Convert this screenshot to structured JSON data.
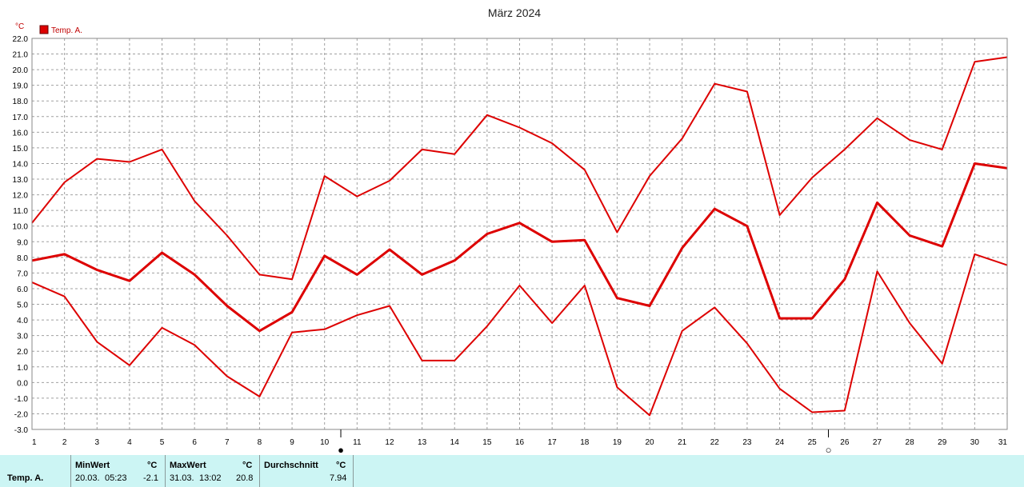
{
  "title": "März 2024",
  "legend": {
    "label": "Temp. A.",
    "color": "#dd0000"
  },
  "chart_data": {
    "type": "line",
    "title": "März 2024",
    "ylabel": "°C",
    "xlabel": "",
    "ylim": [
      -3.0,
      22.0
    ],
    "xlim": [
      1,
      31
    ],
    "y_ticks": [
      "-3.0",
      "-2.0",
      "-1.0",
      "0.0",
      "1.0",
      "2.0",
      "3.0",
      "4.0",
      "5.0",
      "6.0",
      "7.0",
      "8.0",
      "9.0",
      "10.0",
      "11.0",
      "12.0",
      "13.0",
      "14.0",
      "15.0",
      "16.0",
      "17.0",
      "18.0",
      "19.0",
      "20.0",
      "21.0",
      "22.0"
    ],
    "x": [
      1,
      2,
      3,
      4,
      5,
      6,
      7,
      8,
      9,
      10,
      11,
      12,
      13,
      14,
      15,
      16,
      17,
      18,
      19,
      20,
      21,
      22,
      23,
      24,
      25,
      26,
      27,
      28,
      29,
      30,
      31
    ],
    "grid": true,
    "legend_position": "top-left",
    "series": [
      {
        "name": "",
        "role": "max",
        "color": "#dd0000",
        "values": [
          10.2,
          12.8,
          14.3,
          14.1,
          14.9,
          11.6,
          9.4,
          6.9,
          6.6,
          13.2,
          11.9,
          12.9,
          14.9,
          14.6,
          17.1,
          16.3,
          15.3,
          13.6,
          9.6,
          13.2,
          15.6,
          19.1,
          18.6,
          10.7,
          13.1,
          14.9,
          16.9,
          15.5,
          14.9,
          20.5,
          20.8
        ]
      },
      {
        "name": "",
        "role": "mean",
        "color": "#dd0000",
        "values": [
          7.8,
          8.2,
          7.2,
          6.5,
          8.3,
          6.9,
          4.9,
          3.3,
          4.5,
          8.1,
          6.9,
          8.5,
          6.9,
          7.8,
          9.5,
          10.2,
          9.0,
          9.1,
          5.4,
          4.9,
          8.6,
          11.1,
          10.0,
          4.1,
          4.1,
          6.6,
          11.5,
          9.4,
          8.7,
          14.0,
          13.7
        ]
      },
      {
        "name": "",
        "role": "min",
        "color": "#dd0000",
        "values": [
          6.4,
          5.5,
          2.6,
          1.1,
          3.5,
          2.4,
          0.4,
          -0.9,
          3.2,
          3.4,
          4.3,
          4.9,
          1.4,
          1.4,
          3.6,
          6.2,
          3.8,
          6.2,
          -0.3,
          -2.1,
          3.3,
          4.8,
          2.5,
          -0.4,
          -1.9,
          -1.8,
          7.1,
          3.8,
          1.2,
          8.2,
          7.5
        ]
      }
    ],
    "markers": [
      {
        "day": 10.5,
        "symbol": "●"
      },
      {
        "day": 25.5,
        "symbol": "○"
      }
    ]
  },
  "stats": {
    "row_label": "Temp. A.",
    "min": {
      "header": "MinWert",
      "unit": "°C",
      "date": "20.03.",
      "time": "05:23",
      "value": "-2.1"
    },
    "max": {
      "header": "MaxWert",
      "unit": "°C",
      "date": "31.03.",
      "time": "13:02",
      "value": "20.8"
    },
    "avg": {
      "header": "Durchschnitt",
      "unit": "°C",
      "value": "7.94"
    }
  }
}
